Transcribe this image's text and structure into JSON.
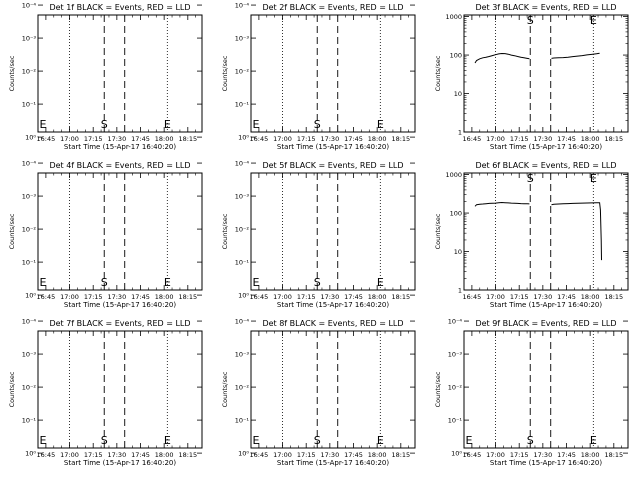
{
  "chart_data": {
    "type": "line",
    "x_tick_labels": [
      "16:45",
      "17:00",
      "17:15",
      "17:30",
      "17:45",
      "18:00",
      "18:15"
    ],
    "x_ticks_minutes": [
      -15,
      0,
      15,
      30,
      45,
      60,
      75
    ],
    "xlabel": "Start Time (15-Apr-17 16:40:20)",
    "x_range_minutes": [
      -20,
      84
    ],
    "ylabel": "Counts/sec",
    "dotted_lines_minutes": [
      0,
      62
    ],
    "dashed_lines_minutes": [
      22,
      35
    ],
    "start_marker": "S",
    "end_marker": "E",
    "panels": [
      {
        "id": "1f",
        "title": "Det 1f BLACK = Events, RED = LLD",
        "scale": "small",
        "ylim": [
          0.7,
          0.0002
        ],
        "y_tick_values": [
          1,
          0.1,
          0.01,
          0.001,
          0.0001
        ],
        "y_tick_labels": [
          "10⁰",
          "10⁻¹",
          "10⁻²",
          "10⁻³",
          "10⁻⁴"
        ],
        "series": []
      },
      {
        "id": "2f",
        "title": "Det 2f BLACK = Events, RED = LLD",
        "scale": "small",
        "ylim": [
          0.7,
          0.0002
        ],
        "y_tick_values": [
          1,
          0.1,
          0.01,
          0.001,
          0.0001
        ],
        "y_tick_labels": [
          "10⁰",
          "10⁻¹",
          "10⁻²",
          "10⁻³",
          "10⁻⁴"
        ],
        "series": []
      },
      {
        "id": "3f",
        "title": "Det 3f BLACK = Events, RED = LLD",
        "scale": "large",
        "ylim": [
          1,
          1100
        ],
        "y_tick_values": [
          1,
          10,
          100,
          1000
        ],
        "y_tick_labels": [
          "1",
          "10",
          "100",
          "1000"
        ],
        "series": [
          {
            "x": [
              -13,
              -12,
              -10,
              -8,
              -6,
              -4,
              -2,
              0,
              2,
              4,
              6,
              8,
              10,
              12,
              14,
              16,
              18,
              20,
              21.5
            ],
            "y": [
              62,
              72,
              80,
              85,
              88,
              92,
              97,
              102,
              107,
              110,
              109,
              105,
              100,
              96,
              92,
              88,
              85,
              82,
              80
            ]
          },
          {
            "x": [
              35.5,
              37,
              40,
              43,
              46,
              49,
              52,
              55,
              58,
              61,
              64,
              66
            ],
            "y": [
              82,
              84,
              85,
              86,
              88,
              91,
              94,
              97,
              101,
              104,
              108,
              112
            ]
          }
        ]
      },
      {
        "id": "4f",
        "title": "Det 4f BLACK = Events, RED = LLD",
        "scale": "small",
        "ylim": [
          0.7,
          0.0002
        ],
        "y_tick_values": [
          1,
          0.1,
          0.01,
          0.001,
          0.0001
        ],
        "y_tick_labels": [
          "10⁰",
          "10⁻¹",
          "10⁻²",
          "10⁻³",
          "10⁻⁴"
        ],
        "series": []
      },
      {
        "id": "5f",
        "title": "Det 5f BLACK = Events, RED = LLD",
        "scale": "small",
        "ylim": [
          0.7,
          0.0002
        ],
        "y_tick_values": [
          1,
          0.1,
          0.01,
          0.001,
          0.0001
        ],
        "y_tick_labels": [
          "10⁰",
          "10⁻¹",
          "10⁻²",
          "10⁻³",
          "10⁻⁴"
        ],
        "series": []
      },
      {
        "id": "6f",
        "title": "Det 6f BLACK = Events, RED = LLD",
        "scale": "large",
        "ylim": [
          1,
          1100
        ],
        "y_tick_values": [
          1,
          10,
          100,
          1000
        ],
        "y_tick_labels": [
          "1",
          "10",
          "100",
          "1000"
        ],
        "series": [
          {
            "x": [
              -13,
              -12,
              -10,
              -8,
              -6,
              -4,
              -2,
              0,
              2,
              4,
              6,
              8,
              10,
              12,
              14,
              16,
              18,
              20,
              21.5
            ],
            "y": [
              150,
              165,
              170,
              172,
              175,
              178,
              180,
              182,
              185,
              188,
              186,
              184,
              182,
              180,
              178,
              176,
              175,
              174,
              173
            ]
          },
          {
            "x": [
              35.5,
              37,
              40,
              43,
              46,
              49,
              52,
              55,
              58,
              61,
              64,
              66,
              66.5,
              67,
              67.2
            ],
            "y": [
              165,
              170,
              172,
              174,
              176,
              178,
              180,
              182,
              183,
              184,
              185,
              185,
              120,
              20,
              6
            ]
          }
        ]
      },
      {
        "id": "7f",
        "title": "Det 7f BLACK = Events, RED = LLD",
        "scale": "small",
        "ylim": [
          0.7,
          0.0002
        ],
        "y_tick_values": [
          1,
          0.1,
          0.01,
          0.001,
          0.0001
        ],
        "y_tick_labels": [
          "10⁰",
          "10⁻¹",
          "10⁻²",
          "10⁻³",
          "10⁻⁴"
        ],
        "series": []
      },
      {
        "id": "8f",
        "title": "Det 8f BLACK = Events, RED = LLD",
        "scale": "small",
        "ylim": [
          0.7,
          0.0002
        ],
        "y_tick_values": [
          1,
          0.1,
          0.01,
          0.001,
          0.0001
        ],
        "y_tick_labels": [
          "10⁰",
          "10⁻¹",
          "10⁻²",
          "10⁻³",
          "10⁻⁴"
        ],
        "series": []
      },
      {
        "id": "9f",
        "title": "Det 9f BLACK = Events, RED = LLD",
        "scale": "small",
        "ylim": [
          0.7,
          0.0002
        ],
        "y_tick_values": [
          1,
          0.1,
          0.01,
          0.001,
          0.0001
        ],
        "y_tick_labels": [
          "10⁰",
          "10⁻¹",
          "10⁻²",
          "10⁻³",
          "10⁻⁴"
        ],
        "series": []
      }
    ]
  }
}
